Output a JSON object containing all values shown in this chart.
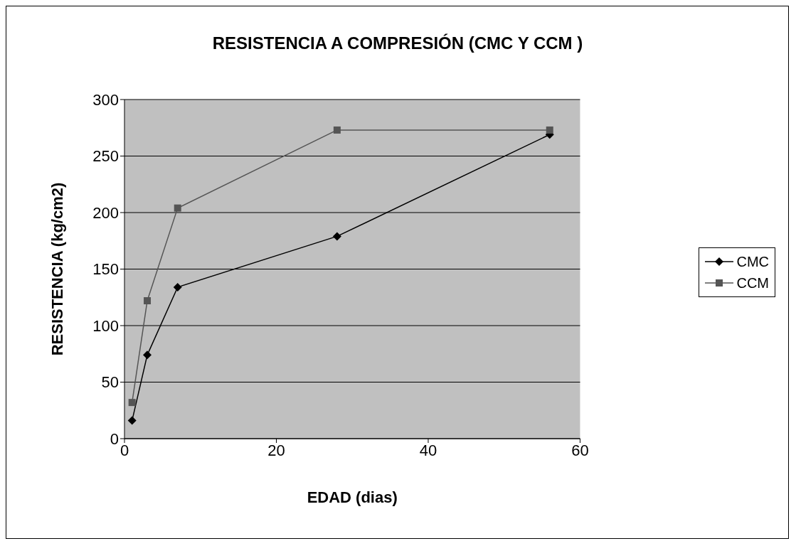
{
  "chart_data": {
    "type": "line",
    "title": "RESISTENCIA A COMPRESIÓN (CMC Y CCM )",
    "xlabel": "EDAD (dias)",
    "ylabel": "RESISTENCIA (kg/cm2)",
    "x": [
      1,
      3,
      7,
      28,
      56
    ],
    "series": [
      {
        "name": "CMC",
        "color": "#000000",
        "marker": "diamond",
        "values": [
          16,
          74,
          134,
          179,
          269
        ]
      },
      {
        "name": "CCM",
        "color": "#555555",
        "marker": "square",
        "values": [
          32,
          122,
          204,
          273,
          273
        ]
      }
    ],
    "xlim": [
      0,
      60
    ],
    "xticks": [
      0,
      20,
      40,
      60
    ],
    "ylim": [
      0,
      300
    ],
    "yticks": [
      0,
      50,
      100,
      150,
      200,
      250,
      300
    ],
    "grid": "y",
    "legend": "right",
    "line_style": "solid"
  }
}
